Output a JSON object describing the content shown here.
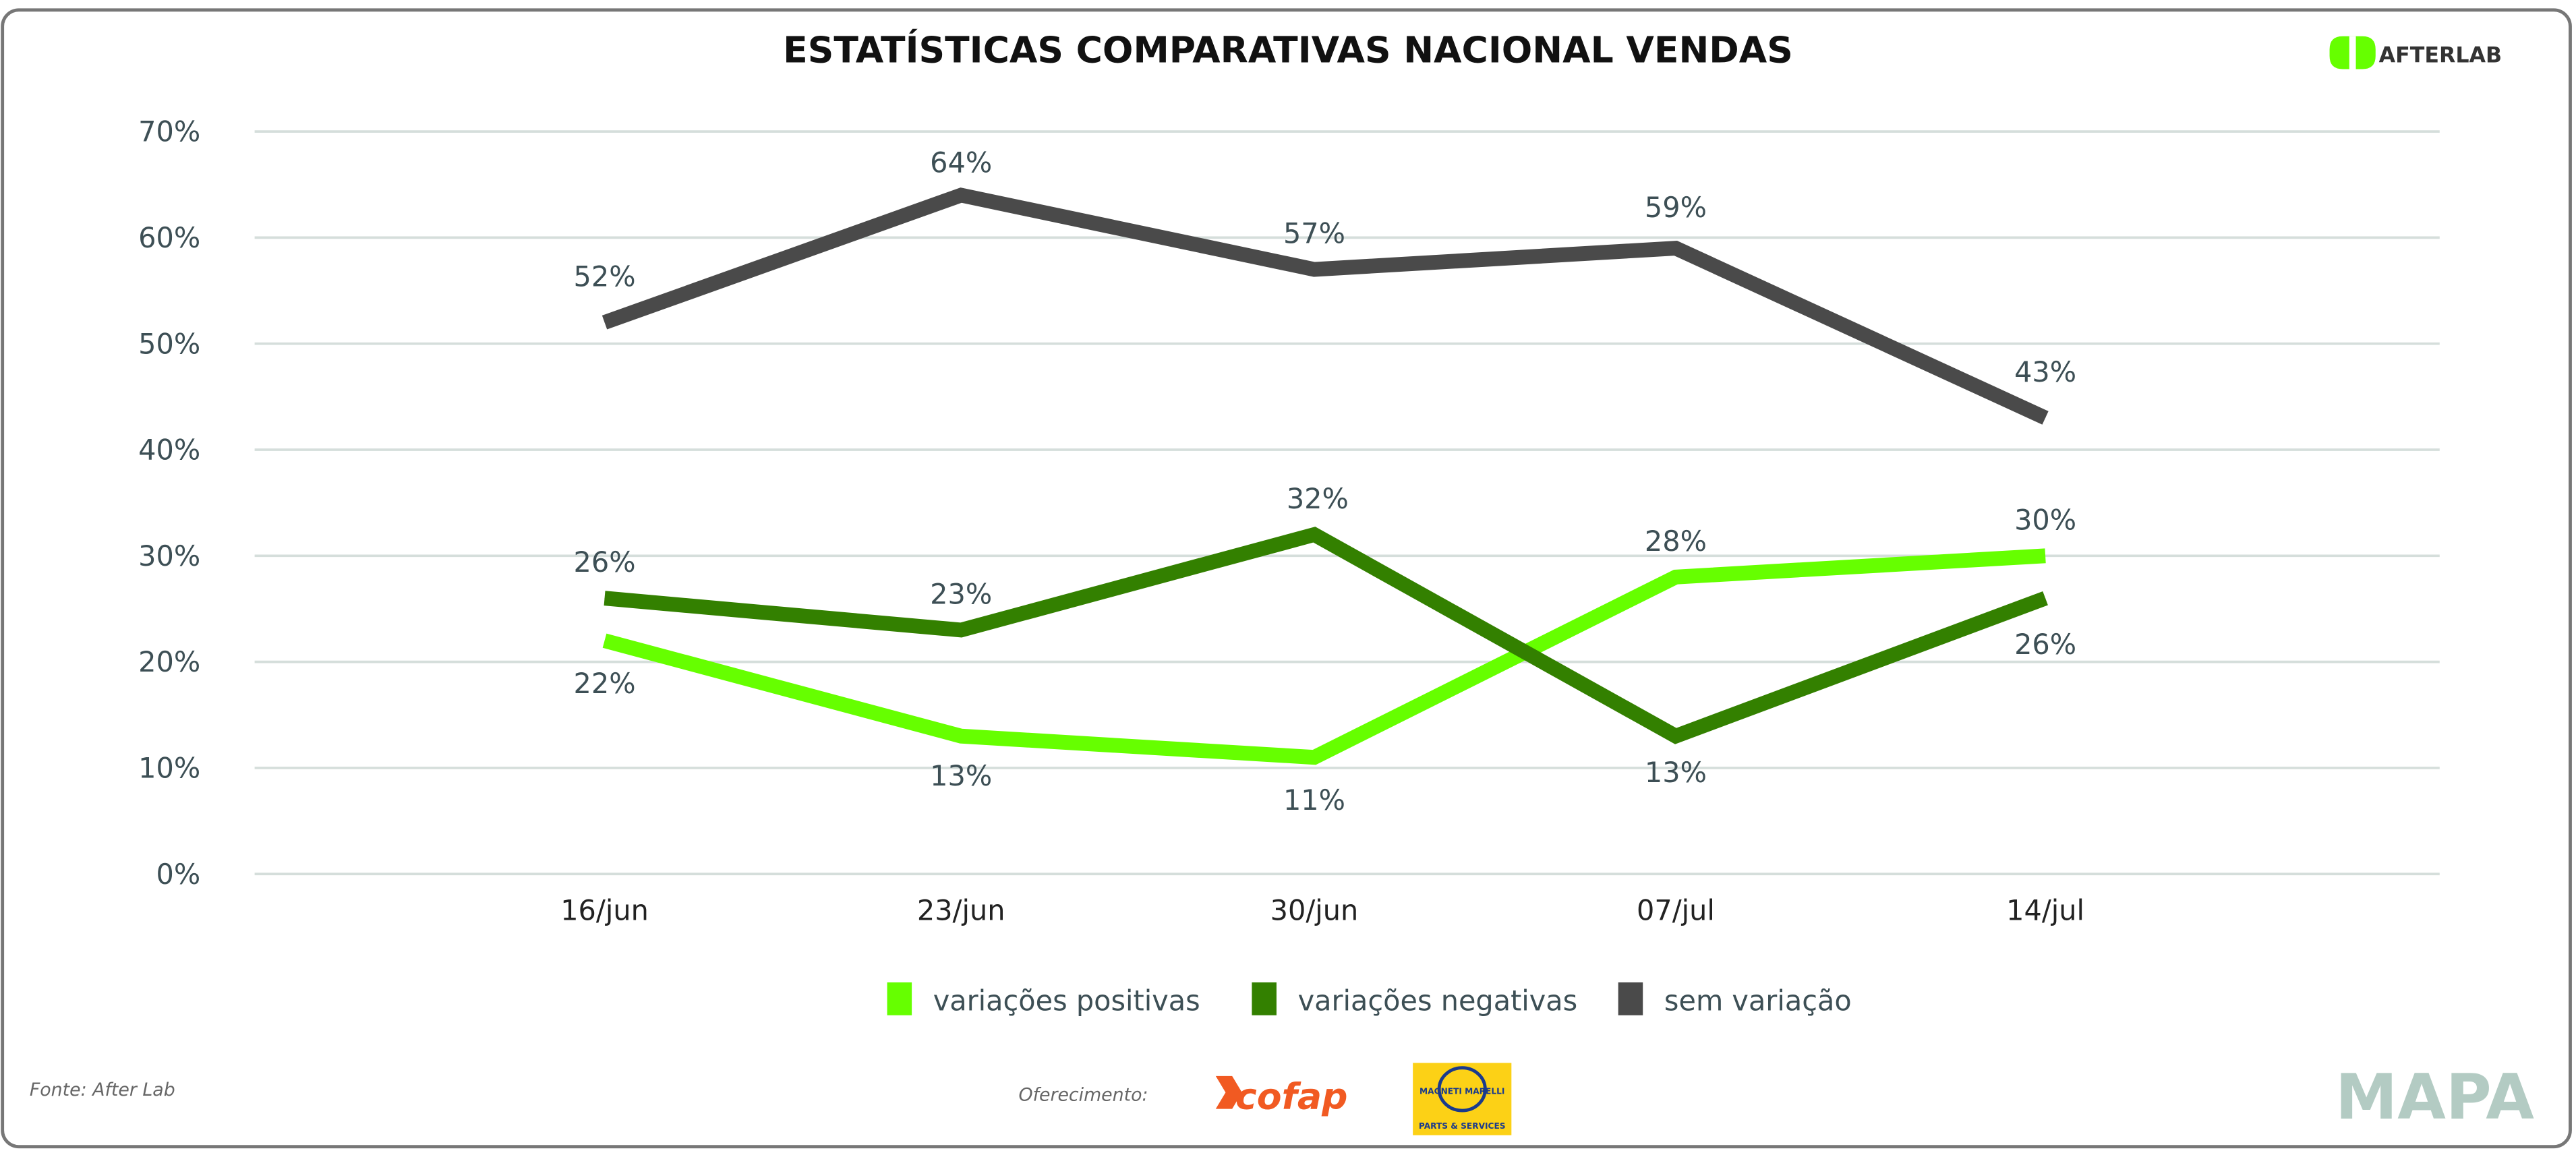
{
  "header": {
    "title": "ESTATÍSTICAS COMPARATIVAS NACIONAL VENDAS",
    "brand_logo": "AFTERLAB"
  },
  "chart_data": {
    "type": "line",
    "title": "ESTATÍSTICAS COMPARATIVAS NACIONAL VENDAS",
    "categories": [
      "16/jun",
      "23/jun",
      "30/jun",
      "07/jul",
      "14/jul"
    ],
    "ylim": [
      0,
      70
    ],
    "yticks": [
      "0%",
      "10%",
      "20%",
      "30%",
      "40%",
      "50%",
      "60%",
      "70%"
    ],
    "grid": true,
    "legend": "bottom",
    "series": [
      {
        "name": "variações positivas",
        "color": "#66ff00",
        "values": [
          22,
          13,
          11,
          28,
          30
        ],
        "labels": [
          "22%",
          "13%",
          "11%",
          "28%",
          "30%"
        ]
      },
      {
        "name": "variações negativas",
        "color": "#338000",
        "values": [
          26,
          23,
          32,
          13,
          26
        ],
        "labels": [
          "26%",
          "23%",
          "32%",
          "13%",
          "26%"
        ]
      },
      {
        "name": "sem variação",
        "color": "#4a4a4a",
        "values": [
          52,
          64,
          57,
          59,
          43
        ],
        "labels": [
          "52%",
          "64%",
          "57%",
          "59%",
          "43%"
        ]
      }
    ]
  },
  "footer": {
    "source": "Fonte: After Lab",
    "sponsor_label": "Oferecimento:",
    "sponsor_1": "cofap",
    "sponsor_2_top": "MAGNETI MARELLI",
    "sponsor_2_bottom": "PARTS & SERVICES",
    "partner": "MAPA"
  }
}
